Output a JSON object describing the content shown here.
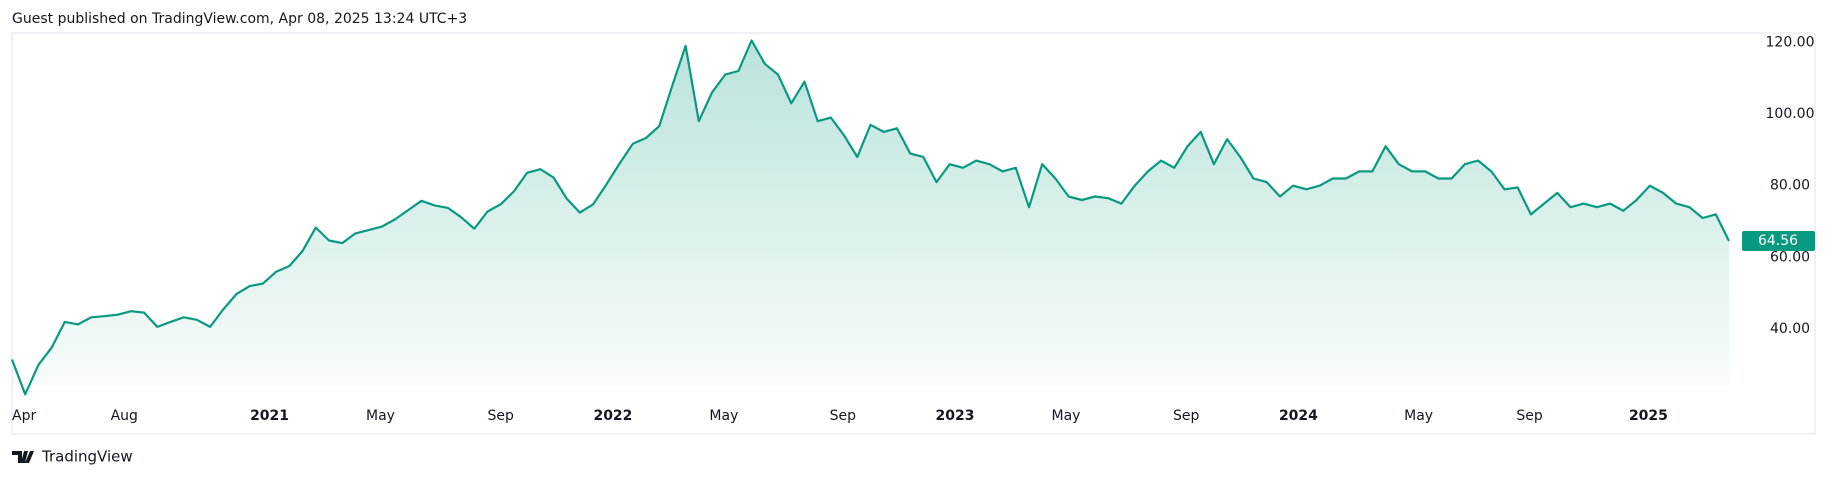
{
  "header": "Guest published on TradingView.com, Apr 08, 2025 13:24 UTC+3",
  "footer": "TradingView",
  "chart_data": {
    "type": "area",
    "series": [
      {
        "color": "#089981",
        "values": [
          31.5,
          21.8,
          30,
          34.8,
          42,
          41.3,
          43.3,
          43.6,
          44,
          45,
          44.6,
          40.6,
          42,
          43.3,
          42.6,
          40.6,
          45.5,
          49.8,
          52,
          52.7,
          56,
          57.6,
          61.8,
          68.3,
          64.7,
          64,
          66.7,
          67.6,
          68.6,
          70.6,
          73.2,
          75.8,
          74.5,
          73.8,
          71.2,
          68,
          72.8,
          74.8,
          78.4,
          83.6,
          84.6,
          82.3,
          76.4,
          72.5,
          74.8,
          80.3,
          86.2,
          91.7,
          93.3,
          96.6,
          108,
          119,
          98,
          106,
          111,
          112,
          120.5,
          114,
          111,
          103,
          109,
          98,
          99,
          94,
          88,
          97,
          95,
          96,
          89,
          88,
          81,
          86,
          85,
          87,
          86,
          84,
          85,
          74,
          86,
          82,
          77,
          76,
          77,
          76.5,
          75,
          80,
          84,
          87,
          85,
          91,
          95,
          86,
          93,
          88,
          82,
          81,
          77,
          80,
          79,
          80,
          82,
          82,
          84,
          84,
          91,
          86,
          84,
          84,
          82,
          82,
          86,
          87,
          84,
          79,
          79.5,
          72,
          75,
          78,
          74,
          75,
          74,
          75,
          73,
          76,
          80,
          78,
          75,
          74,
          71,
          72,
          64.56
        ]
      }
    ],
    "xlim": [
      0,
      130
    ],
    "xticks": [
      {
        "value": 0,
        "label": "Apr"
      },
      {
        "value": 8.5,
        "label": "Aug"
      },
      {
        "value": 19.5,
        "label": "2021"
      },
      {
        "value": 27.9,
        "label": "May"
      },
      {
        "value": 37,
        "label": "Sep"
      },
      {
        "value": 45.5,
        "label": "2022"
      },
      {
        "value": 53.9,
        "label": "May"
      },
      {
        "value": 62.9,
        "label": "Sep"
      },
      {
        "value": 71.4,
        "label": "2023"
      },
      {
        "value": 79.8,
        "label": "May"
      },
      {
        "value": 88.9,
        "label": "Sep"
      },
      {
        "value": 97.4,
        "label": "2024"
      },
      {
        "value": 106.5,
        "label": "May"
      },
      {
        "value": 114.9,
        "label": "Sep"
      },
      {
        "value": 123.9,
        "label": "2025"
      }
    ],
    "ylim": [
      24.4,
      122.6
    ],
    "yticks": [
      {
        "value": 40,
        "label": "40.00"
      },
      {
        "value": 60,
        "label": "60.00"
      },
      {
        "value": 80,
        "label": "80.00"
      },
      {
        "value": 100,
        "label": "100.00"
      },
      {
        "value": 120,
        "label": "120.00"
      }
    ]
  }
}
